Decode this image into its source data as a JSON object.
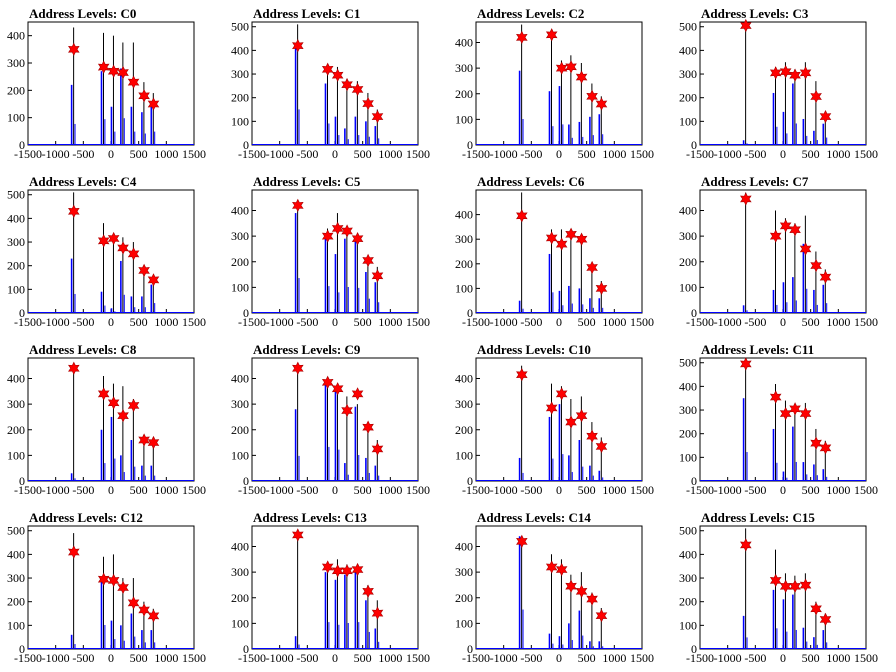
{
  "chart_data": {
    "type": "bar",
    "layout": "grid-4x4",
    "x_tick_labels": [
      "-1500",
      "-1000",
      "-500",
      "0",
      "500",
      "1000",
      "1500"
    ],
    "xlim": [
      -1500,
      1500
    ],
    "colors": {
      "histogram": "#0000ff",
      "spike": "#000000",
      "marker": "#ff0000",
      "marker_edge": "#aa0000"
    },
    "panels": [
      {
        "title": "Address Levels: C0",
        "ylim": [
          0,
          450
        ],
        "y_ticks": [
          0,
          100,
          200,
          300,
          400
        ],
        "peaks_x": [
          -690,
          -150,
          30,
          200,
          390,
          580,
          750
        ],
        "spike_y": [
          430,
          410,
          400,
          375,
          375,
          230,
          190
        ],
        "hist_y": [
          220,
          270,
          140,
          280,
          140,
          120,
          140
        ],
        "markers": [
          350,
          285,
          270,
          265,
          230,
          180,
          150
        ]
      },
      {
        "title": "Address Levels: C1",
        "ylim": [
          0,
          520
        ],
        "y_ticks": [
          0,
          100,
          200,
          300,
          400,
          500
        ],
        "peaks_x": [
          -690,
          -150,
          30,
          200,
          390,
          580,
          750
        ],
        "spike_y": [
          510,
          330,
          330,
          280,
          270,
          220,
          150
        ],
        "hist_y": [
          430,
          260,
          120,
          70,
          120,
          100,
          80
        ],
        "markers": [
          420,
          320,
          295,
          255,
          235,
          175,
          120
        ]
      },
      {
        "title": "Address Levels: C2",
        "ylim": [
          0,
          480
        ],
        "y_ticks": [
          0,
          100,
          200,
          300,
          400
        ],
        "peaks_x": [
          -690,
          -150,
          30,
          200,
          390,
          580,
          750
        ],
        "spike_y": [
          470,
          440,
          330,
          350,
          320,
          240,
          190
        ],
        "hist_y": [
          290,
          210,
          230,
          80,
          90,
          110,
          120
        ],
        "markers": [
          420,
          430,
          300,
          305,
          265,
          190,
          160
        ]
      },
      {
        "title": "Address Levels: C3",
        "ylim": [
          0,
          520
        ],
        "y_ticks": [
          0,
          100,
          200,
          300,
          400,
          500
        ],
        "peaks_x": [
          -690,
          -150,
          30,
          200,
          390,
          580,
          750
        ],
        "spike_y": [
          510,
          330,
          350,
          320,
          350,
          270,
          130
        ],
        "hist_y": [
          20,
          220,
          140,
          260,
          110,
          60,
          90
        ],
        "markers": [
          505,
          305,
          310,
          295,
          305,
          205,
          120
        ]
      },
      {
        "title": "Address Levels: C4",
        "ylim": [
          0,
          520
        ],
        "y_ticks": [
          0,
          100,
          200,
          300,
          400,
          500
        ],
        "peaks_x": [
          -690,
          -150,
          30,
          200,
          390,
          580,
          750
        ],
        "spike_y": [
          510,
          380,
          330,
          320,
          300,
          200,
          160
        ],
        "hist_y": [
          230,
          90,
          20,
          220,
          70,
          70,
          120
        ],
        "markers": [
          430,
          305,
          315,
          275,
          250,
          180,
          140
        ]
      },
      {
        "title": "Address Levels: C5",
        "ylim": [
          0,
          480
        ],
        "y_ticks": [
          0,
          100,
          200,
          300,
          400
        ],
        "peaks_x": [
          -690,
          -150,
          30,
          200,
          390,
          580,
          750
        ],
        "spike_y": [
          440,
          330,
          390,
          330,
          290,
          220,
          180
        ],
        "hist_y": [
          390,
          300,
          230,
          290,
          280,
          160,
          120
        ],
        "markers": [
          420,
          300,
          330,
          320,
          290,
          205,
          145
        ]
      },
      {
        "title": "Address Levels: C6",
        "ylim": [
          0,
          500
        ],
        "y_ticks": [
          0,
          100,
          200,
          300,
          400
        ],
        "peaks_x": [
          -690,
          -150,
          30,
          200,
          390,
          580,
          750
        ],
        "spike_y": [
          490,
          340,
          340,
          340,
          310,
          200,
          130
        ],
        "hist_y": [
          50,
          240,
          90,
          110,
          100,
          60,
          60
        ],
        "markers": [
          395,
          305,
          280,
          320,
          300,
          185,
          100
        ]
      },
      {
        "title": "Address Levels: C7",
        "ylim": [
          0,
          480
        ],
        "y_ticks": [
          0,
          100,
          200,
          300,
          400
        ],
        "peaks_x": [
          -690,
          -150,
          30,
          200,
          390,
          580,
          750
        ],
        "spike_y": [
          470,
          400,
          370,
          350,
          380,
          240,
          170
        ],
        "hist_y": [
          30,
          90,
          120,
          140,
          270,
          90,
          110
        ],
        "markers": [
          445,
          300,
          340,
          325,
          250,
          185,
          140
        ]
      },
      {
        "title": "Address Levels: C8",
        "ylim": [
          0,
          480
        ],
        "y_ticks": [
          0,
          100,
          200,
          300,
          400
        ],
        "peaks_x": [
          -690,
          -150,
          30,
          200,
          390,
          580,
          750
        ],
        "spike_y": [
          440,
          410,
          380,
          370,
          320,
          180,
          170
        ],
        "hist_y": [
          30,
          200,
          250,
          100,
          160,
          60,
          60
        ],
        "markers": [
          440,
          340,
          305,
          255,
          295,
          160,
          150
        ]
      },
      {
        "title": "Address Levels: C9",
        "ylim": [
          0,
          480
        ],
        "y_ticks": [
          0,
          100,
          200,
          300,
          400
        ],
        "peaks_x": [
          -690,
          -150,
          30,
          200,
          390,
          580,
          750
        ],
        "spike_y": [
          420,
          390,
          380,
          330,
          300,
          200,
          160
        ],
        "hist_y": [
          280,
          380,
          350,
          70,
          290,
          90,
          60
        ],
        "markers": [
          440,
          385,
          360,
          275,
          340,
          210,
          125
        ]
      },
      {
        "title": "Address Levels: C10",
        "ylim": [
          0,
          480
        ],
        "y_ticks": [
          0,
          100,
          200,
          300,
          400
        ],
        "peaks_x": [
          -690,
          -150,
          30,
          200,
          390,
          580,
          750
        ],
        "spike_y": [
          450,
          380,
          370,
          320,
          330,
          230,
          170
        ],
        "hist_y": [
          90,
          250,
          300,
          100,
          160,
          60,
          40
        ],
        "markers": [
          415,
          285,
          340,
          230,
          255,
          175,
          135
        ]
      },
      {
        "title": "Address Levels: C11",
        "ylim": [
          0,
          520
        ],
        "y_ticks": [
          0,
          100,
          200,
          300,
          400,
          500
        ],
        "peaks_x": [
          -690,
          -150,
          30,
          200,
          390,
          580,
          750
        ],
        "spike_y": [
          510,
          410,
          340,
          320,
          330,
          220,
          170
        ],
        "hist_y": [
          350,
          220,
          40,
          230,
          80,
          70,
          50
        ],
        "markers": [
          495,
          355,
          285,
          305,
          285,
          160,
          140
        ]
      },
      {
        "title": "Address Levels: C12",
        "ylim": [
          0,
          520
        ],
        "y_ticks": [
          0,
          100,
          200,
          300,
          400,
          500
        ],
        "peaks_x": [
          -690,
          -150,
          30,
          200,
          390,
          580,
          750
        ],
        "spike_y": [
          490,
          390,
          400,
          300,
          300,
          200,
          170
        ],
        "hist_y": [
          60,
          290,
          120,
          100,
          150,
          80,
          80
        ],
        "markers": [
          410,
          295,
          290,
          260,
          195,
          165,
          140
        ]
      },
      {
        "title": "Address Levels: C13",
        "ylim": [
          0,
          480
        ],
        "y_ticks": [
          0,
          100,
          200,
          300,
          400
        ],
        "peaks_x": [
          -690,
          -150,
          30,
          200,
          390,
          580,
          750
        ],
        "spike_y": [
          460,
          340,
          350,
          330,
          330,
          250,
          190
        ],
        "hist_y": [
          50,
          300,
          270,
          290,
          300,
          190,
          80
        ],
        "markers": [
          445,
          320,
          305,
          305,
          310,
          225,
          140
        ]
      },
      {
        "title": "Address Levels: C14",
        "ylim": [
          0,
          480
        ],
        "y_ticks": [
          0,
          100,
          200,
          300,
          400
        ],
        "peaks_x": [
          -690,
          -150,
          30,
          200,
          390,
          580,
          750
        ],
        "spike_y": [
          440,
          370,
          350,
          290,
          300,
          220,
          160
        ],
        "hist_y": [
          440,
          60,
          50,
          100,
          150,
          30,
          30
        ],
        "markers": [
          420,
          320,
          310,
          245,
          225,
          195,
          130
        ]
      },
      {
        "title": "Address Levels: C15",
        "ylim": [
          0,
          520
        ],
        "y_ticks": [
          0,
          100,
          200,
          300,
          400,
          500
        ],
        "peaks_x": [
          -690,
          -150,
          30,
          200,
          390,
          580,
          750
        ],
        "spike_y": [
          510,
          420,
          320,
          310,
          320,
          200,
          150
        ],
        "hist_y": [
          140,
          250,
          210,
          230,
          90,
          50,
          80
        ],
        "markers": [
          440,
          290,
          265,
          265,
          270,
          170,
          125
        ]
      }
    ]
  }
}
